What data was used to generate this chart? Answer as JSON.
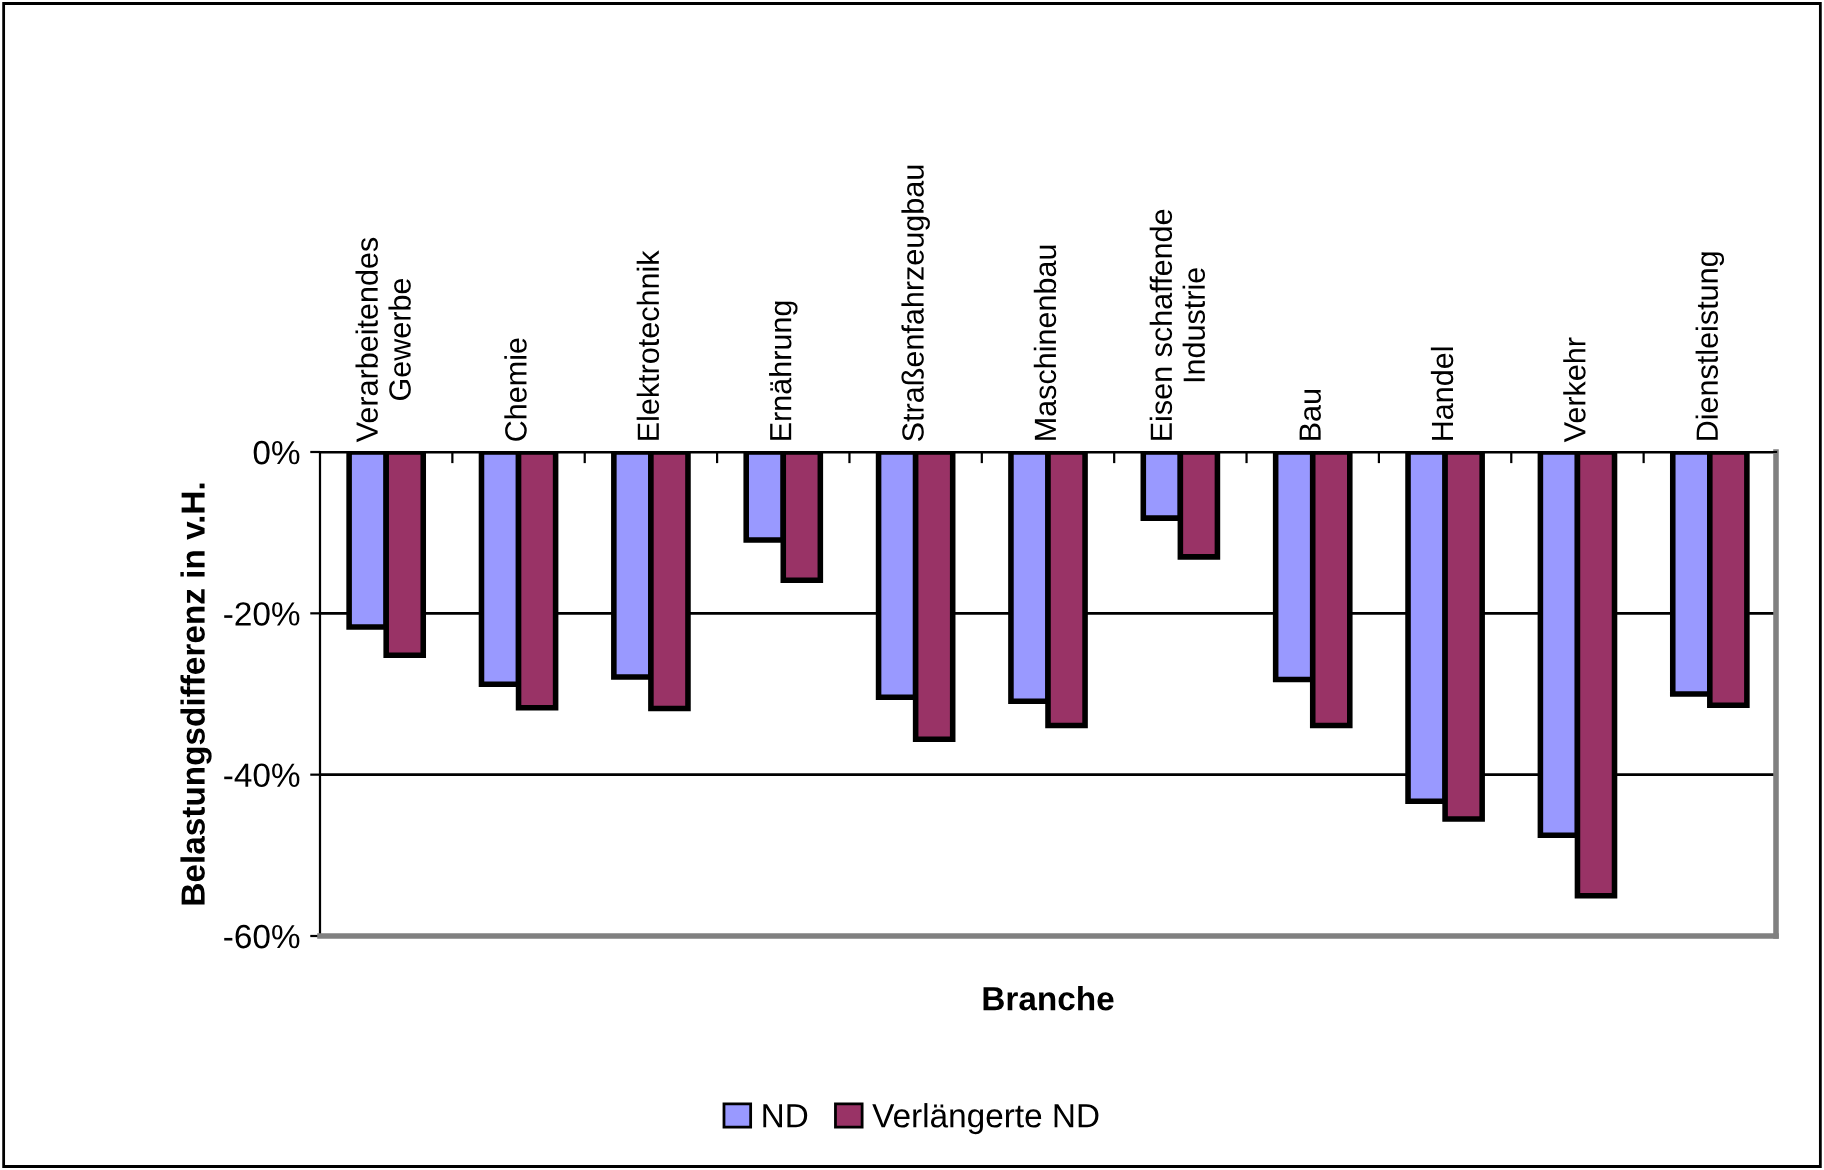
{
  "chart_data": {
    "type": "bar",
    "xlabel": "Branche",
    "ylabel": "Belastungsdifferenz in v.H.",
    "categories": [
      "Verarbeitendes\nGewerbe",
      "Chemie",
      "Elektrotechnik",
      "Ernährung",
      "Straßenfahrzeugbau",
      "Maschinenbau",
      "Eisen schaffende\nIndustrie",
      "Bau",
      "Handel",
      "Verkehr",
      "Dienstleistung"
    ],
    "series": [
      {
        "name": "ND",
        "color": "#9999ff",
        "values": [
          -21.7,
          -28.8,
          -27.9,
          -10.9,
          -30.4,
          -30.9,
          -8.2,
          -28.2,
          -43.3,
          -47.5,
          -30.0
        ]
      },
      {
        "name": "Verlängerte ND",
        "color": "#993366",
        "values": [
          -25.2,
          -31.7,
          -31.8,
          -15.9,
          -35.6,
          -33.9,
          -13.0,
          -33.9,
          -45.5,
          -55.0,
          -31.4
        ]
      }
    ],
    "ylim": [
      -60,
      0
    ],
    "yticks": [
      {
        "value": -60,
        "label": "-60%"
      },
      {
        "value": -40,
        "label": "-40%"
      },
      {
        "value": -20,
        "label": "-20%"
      },
      {
        "value": 0,
        "label": "0%"
      }
    ],
    "grid": "y",
    "legend": "bottom"
  }
}
